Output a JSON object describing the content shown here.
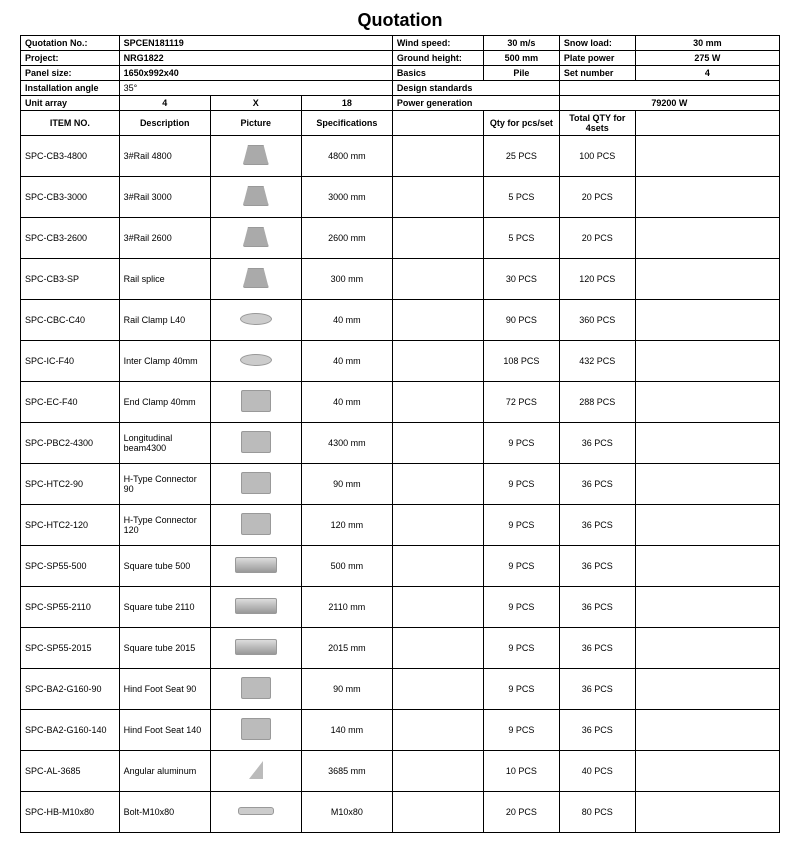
{
  "title": "Quotation",
  "header": {
    "quotation_no_label": "Quotation No.:",
    "quotation_no": "SPCEN181119",
    "project_label": "Project:",
    "project": "NRG1822",
    "panel_size_label": "Panel size:",
    "panel_size": "1650x992x40",
    "install_angle_label": "Installation angle",
    "install_angle": "35°",
    "unit_array_label": "Unit array",
    "unit_array_a": "4",
    "unit_array_mid": "X",
    "unit_array_b": "18",
    "wind_label": "Wind speed:",
    "wind": "30 m/s",
    "ground_label": "Ground height:",
    "ground": "500 mm",
    "basics_label": "Basics",
    "basics": "Pile",
    "design_label": "Design standards",
    "design": "",
    "power_label": "Power generation",
    "power": "79200 W",
    "snow_label": "Snow load:",
    "snow": "30 mm",
    "plate_label": "Plate power",
    "plate": "275 W",
    "set_label": "Set number",
    "set": "4"
  },
  "columns": {
    "item": "ITEM NO.",
    "desc": "Description",
    "pic": "Picture",
    "spec": "Specifications",
    "blank": "",
    "qtyper": "Qty for pcs/set",
    "qtytotal": "Total QTY for 4sets",
    "last": ""
  },
  "rows": [
    {
      "item": "SPC-CB3-4800",
      "desc": "3#Rail 4800",
      "shape": "clip",
      "spec": "4800 mm",
      "qty": "25 PCS",
      "total": "100 PCS"
    },
    {
      "item": "SPC-CB3-3000",
      "desc": "3#Rail 3000",
      "shape": "clip",
      "spec": "3000 mm",
      "qty": "5 PCS",
      "total": "20 PCS"
    },
    {
      "item": "SPC-CB3-2600",
      "desc": "3#Rail 2600",
      "shape": "clip",
      "spec": "2600 mm",
      "qty": "5 PCS",
      "total": "20 PCS"
    },
    {
      "item": "SPC-CB3-SP",
      "desc": "Rail splice",
      "shape": "clip",
      "spec": "300 mm",
      "qty": "30 PCS",
      "total": "120 PCS"
    },
    {
      "item": "SPC-CBC-C40",
      "desc": "Rail Clamp L40",
      "shape": "flat",
      "spec": "40 mm",
      "qty": "90 PCS",
      "total": "360 PCS"
    },
    {
      "item": "SPC-IC-F40",
      "desc": "Inter Clamp 40mm",
      "shape": "flat",
      "spec": "40 mm",
      "qty": "108 PCS",
      "total": "432 PCS"
    },
    {
      "item": "SPC-EC-F40",
      "desc": "End  Clamp 40mm",
      "shape": "",
      "spec": "40 mm",
      "qty": "72 PCS",
      "total": "288 PCS"
    },
    {
      "item": "SPC-PBC2-4300",
      "desc": "Longitudinal beam4300",
      "shape": "",
      "spec": "4300 mm",
      "qty": "9 PCS",
      "total": "36 PCS"
    },
    {
      "item": "SPC-HTC2-90",
      "desc": "H-Type Connector 90",
      "shape": "",
      "spec": "90 mm",
      "qty": "9 PCS",
      "total": "36 PCS"
    },
    {
      "item": "SPC-HTC2-120",
      "desc": "H-Type Connector 120",
      "shape": "",
      "spec": "120 mm",
      "qty": "9 PCS",
      "total": "36 PCS"
    },
    {
      "item": "SPC-SP55-500",
      "desc": "Square tube 500",
      "shape": "tube",
      "spec": "500 mm",
      "qty": "9 PCS",
      "total": "36 PCS"
    },
    {
      "item": "SPC-SP55-2110",
      "desc": "Square tube 2110",
      "shape": "tube",
      "spec": "2110 mm",
      "qty": "9 PCS",
      "total": "36 PCS"
    },
    {
      "item": "SPC-SP55-2015",
      "desc": "Square tube 2015",
      "shape": "tube",
      "spec": "2015 mm",
      "qty": "9 PCS",
      "total": "36 PCS"
    },
    {
      "item": "SPC-BA2-G160-90",
      "desc": "Hind Foot Seat 90",
      "shape": "",
      "spec": "90 mm",
      "qty": "9 PCS",
      "total": "36 PCS"
    },
    {
      "item": "SPC-BA2-G160-140",
      "desc": "Hind Foot Seat 140",
      "shape": "",
      "spec": "140 mm",
      "qty": "9 PCS",
      "total": "36 PCS"
    },
    {
      "item": "SPC-AL-3685",
      "desc": "Angular aluminum",
      "shape": "triangle",
      "spec": "3685 mm",
      "qty": "10 PCS",
      "total": "40 PCS"
    },
    {
      "item": "SPC-HB-M10x80",
      "desc": "Bolt-M10x80",
      "shape": "bolt",
      "spec": "M10x80",
      "qty": "20 PCS",
      "total": "80 PCS"
    }
  ]
}
